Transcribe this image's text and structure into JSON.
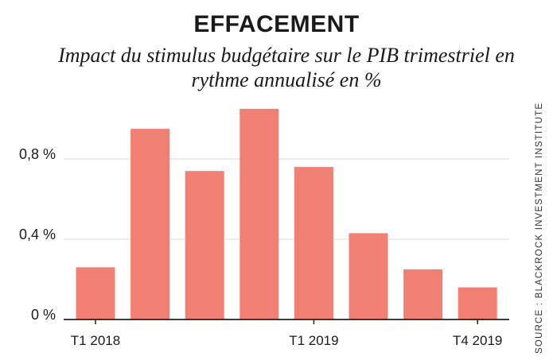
{
  "chart_data": {
    "type": "bar",
    "title": "EFFACEMENT",
    "subtitle": "Impact du stimulus budgétaire sur le PIB trimestriel en rythme annualisé en %",
    "source": "SOURCE : BLACKROCK INVESTMENT INSTITUTE",
    "categories": [
      "T1 2018",
      "",
      "",
      "",
      "T1 2019",
      "",
      "",
      "T4 2019"
    ],
    "values": [
      0.26,
      0.95,
      0.74,
      1.05,
      0.76,
      0.43,
      0.25,
      0.16
    ],
    "yticks": [
      {
        "value": 0,
        "label": "0 %"
      },
      {
        "value": 0.4,
        "label": "0,4 %"
      },
      {
        "value": 0.8,
        "label": "0,8 %"
      }
    ],
    "ylim": [
      0,
      1.1
    ],
    "grid": true,
    "bar_color": "#ef8073",
    "grid_color": "#d9d9d9",
    "axis_color": "#222222"
  }
}
